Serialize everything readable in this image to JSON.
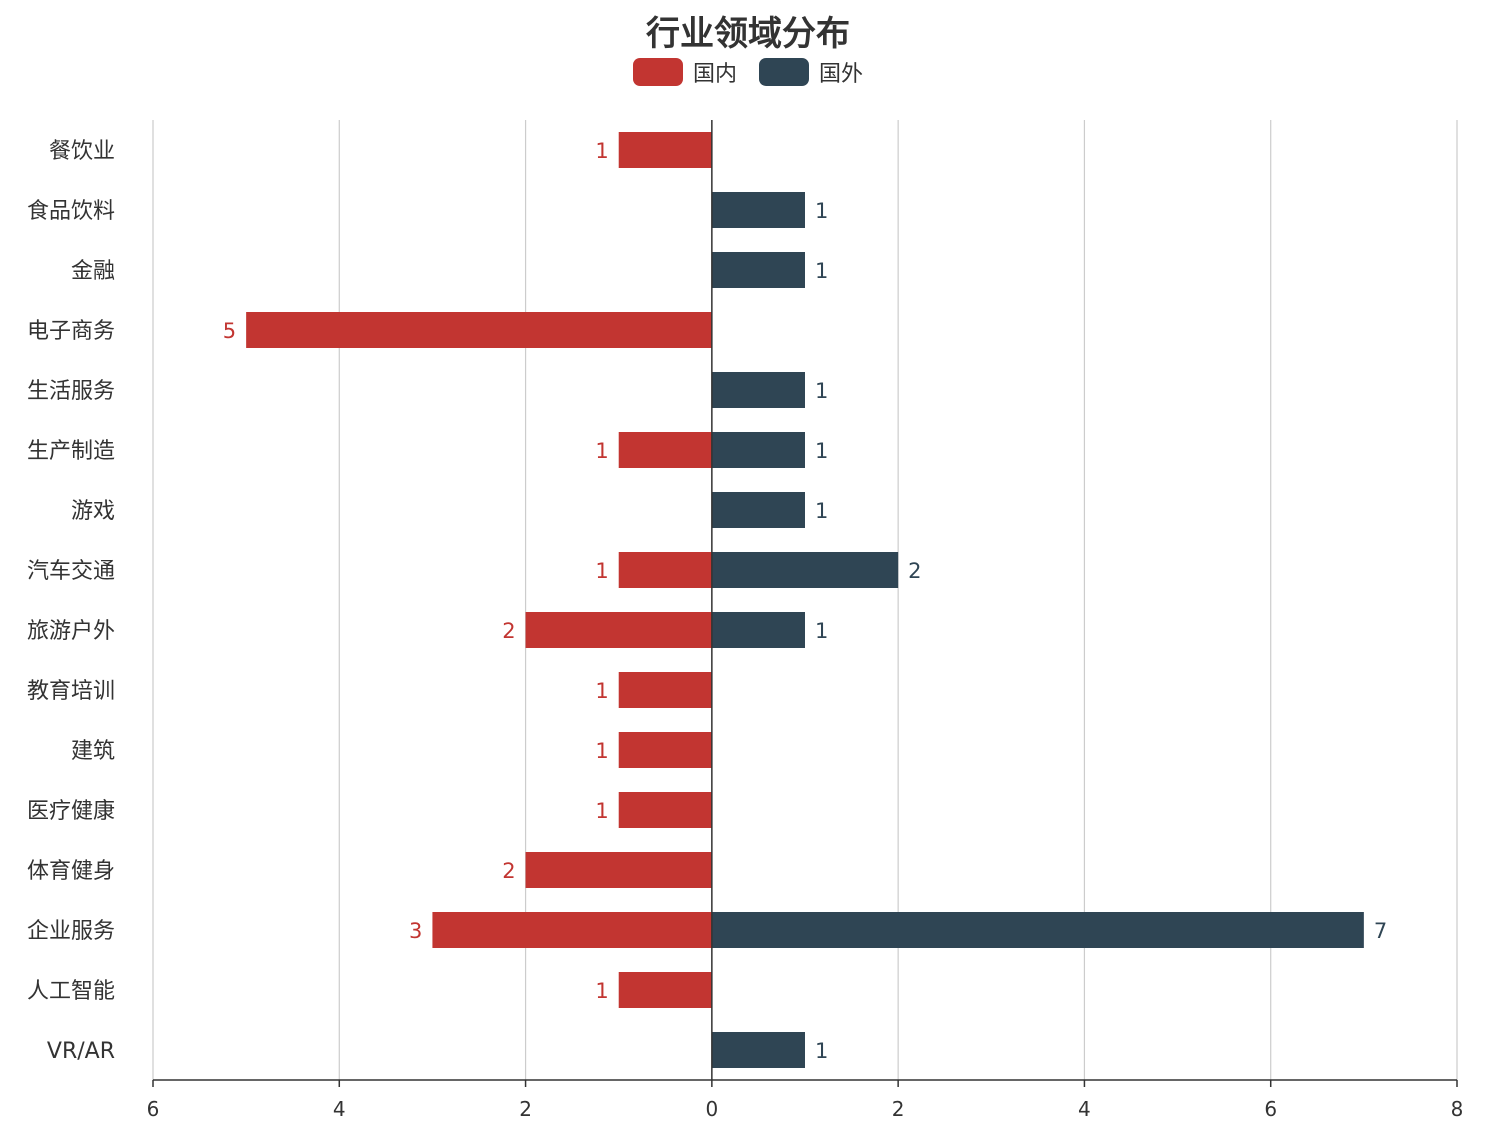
{
  "chart_data": {
    "type": "bar",
    "orientation": "horizontal",
    "title": "行业领域分布",
    "categories": [
      "餐饮业",
      "食品饮料",
      "金融",
      "电子商务",
      "生活服务",
      "生产制造",
      "游戏",
      "汽车交通",
      "旅游户外",
      "教育培训",
      "建筑",
      "医疗健康",
      "体育健身",
      "企业服务",
      "人工智能",
      "VR/AR"
    ],
    "series": [
      {
        "name": "国内",
        "color": "#c23531",
        "direction": "left",
        "values": [
          1,
          0,
          0,
          5,
          0,
          1,
          0,
          1,
          2,
          1,
          1,
          1,
          2,
          3,
          1,
          0
        ]
      },
      {
        "name": "国外",
        "color": "#2f4554",
        "direction": "right",
        "values": [
          0,
          1,
          1,
          0,
          1,
          1,
          1,
          2,
          1,
          0,
          0,
          0,
          0,
          7,
          0,
          1
        ]
      }
    ],
    "xlim": [
      -6,
      8
    ],
    "xticks": [
      -6,
      -4,
      -2,
      0,
      2,
      4,
      6,
      8
    ],
    "xtick_labels": [
      "6",
      "4",
      "2",
      "0",
      "2",
      "4",
      "6",
      "8"
    ],
    "grid": true,
    "legend_position": "top-center"
  }
}
